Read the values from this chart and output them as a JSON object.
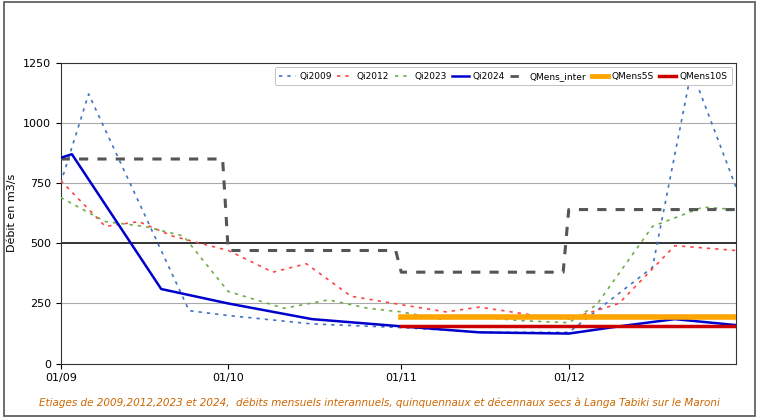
{
  "caption": "Etiages de 2009,2012,2023 et 2024,  débits mensuels interannuels, quinquennaux et décennaux secs à Langa Tabiki sur le Maroni",
  "ylabel": "Débit en m3/s",
  "ylim": [
    0,
    1250
  ],
  "yticks": [
    0,
    250,
    500,
    750,
    1000,
    1250
  ],
  "xtick_labels": [
    "01/09",
    "01/10",
    "01/11",
    "01/12"
  ],
  "background_color": "#ffffff",
  "caption_color": "#cc6600",
  "series": {
    "Qi2009": {
      "color": "#4472c4",
      "linewidth": 1.2
    },
    "Qi2012": {
      "color": "#ff4444",
      "linewidth": 1.2
    },
    "Qi2023": {
      "color": "#70ad47",
      "linewidth": 1.2
    },
    "Qi2024": {
      "color": "#0000cd",
      "linewidth": 1.8
    },
    "QMens_inter": {
      "color": "#555555",
      "linewidth": 2.2
    },
    "QMens5S": {
      "color": "#ffa500",
      "linewidth": 4.0
    },
    "QMens10S": {
      "color": "#cc0000",
      "linewidth": 2.5
    }
  },
  "QMens_inter": {
    "sep": 850,
    "oct": 470,
    "nov": 380,
    "dec": 640
  },
  "QMens5S": {
    "nov": 195,
    "dec": 195
  },
  "QMens10S": {
    "nov": 155,
    "dec": 155
  }
}
